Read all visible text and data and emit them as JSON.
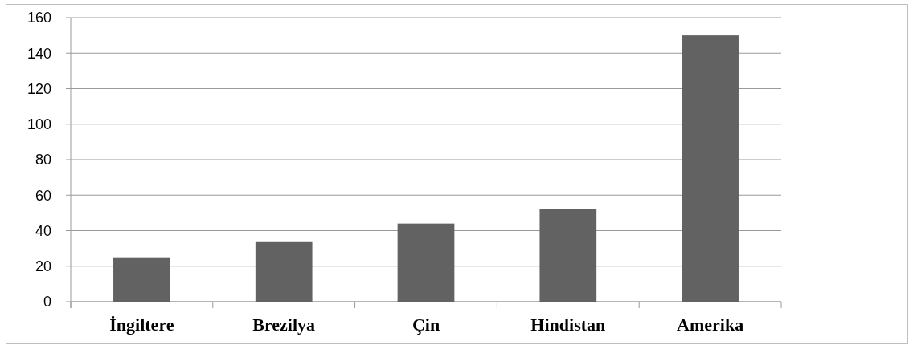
{
  "chart_data": {
    "type": "bar",
    "categories": [
      "İngiltere",
      "Brezilya",
      "Çin",
      "Hindistan",
      "Amerika"
    ],
    "values": [
      25,
      34,
      44,
      52,
      150
    ],
    "color": "#626262",
    "ylim": [
      0,
      160
    ],
    "yticks": [
      0,
      20,
      40,
      60,
      80,
      100,
      120,
      140,
      160
    ],
    "grid": "y"
  }
}
